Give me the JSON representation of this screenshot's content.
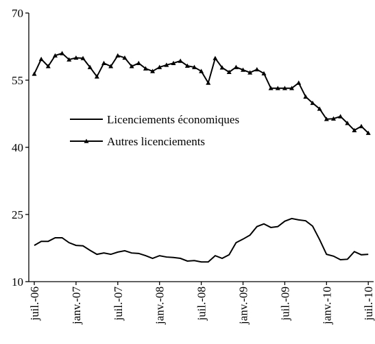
{
  "chart_data": {
    "type": "line",
    "categories": [
      "juil.-06",
      null,
      null,
      null,
      null,
      null,
      "janv.-07",
      null,
      null,
      null,
      null,
      null,
      "juil.-07",
      null,
      null,
      null,
      null,
      null,
      "janv.-08",
      null,
      null,
      null,
      null,
      null,
      "juil.-08",
      null,
      null,
      null,
      null,
      null,
      "janv.-09",
      null,
      null,
      null,
      null,
      null,
      "juil.-09",
      null,
      null,
      null,
      null,
      null,
      "janv.-10",
      null,
      null,
      null,
      null,
      null,
      "juil.-10"
    ],
    "series": [
      {
        "name": "Licenciements économiques",
        "color": "#000000",
        "marker": "none",
        "values": [
          18.1,
          19,
          19,
          19.8,
          19.8,
          18.7,
          18.1,
          18,
          17,
          16.1,
          16.4,
          16.1,
          16.6,
          16.9,
          16.4,
          16.3,
          15.8,
          15.2,
          15.8,
          15.5,
          15.4,
          15.2,
          14.6,
          14.7,
          14.4,
          14.4,
          15.8,
          15.2,
          16,
          18.7,
          19.5,
          20.4,
          22.3,
          22.9,
          22.1,
          22.3,
          23.5,
          24.1,
          23.8,
          23.6,
          22.4,
          19.4,
          16.1,
          15.7,
          14.9,
          15,
          16.7,
          16,
          16.1
        ]
      },
      {
        "name": "Autres licenciements",
        "color": "#000000",
        "marker": "triangle",
        "values": [
          56.4,
          59.7,
          58.1,
          60.5,
          61,
          59.6,
          60,
          59.9,
          57.9,
          55.8,
          58.8,
          58.1,
          60.5,
          60,
          58.1,
          58.8,
          57.6,
          57,
          57.9,
          58.4,
          58.8,
          59.3,
          58.2,
          57.9,
          57,
          54.4,
          59.9,
          57.8,
          56.8,
          57.9,
          57.3,
          56.7,
          57.4,
          56.5,
          53.2,
          53.2,
          53.2,
          53.2,
          54.4,
          51.3,
          49.9,
          48.6,
          46.3,
          46.4,
          46.9,
          45.4,
          43.8,
          44.7,
          43.2
        ]
      }
    ],
    "ylim": [
      10,
      70
    ],
    "yticks": [
      10,
      25,
      40,
      55,
      70
    ]
  }
}
